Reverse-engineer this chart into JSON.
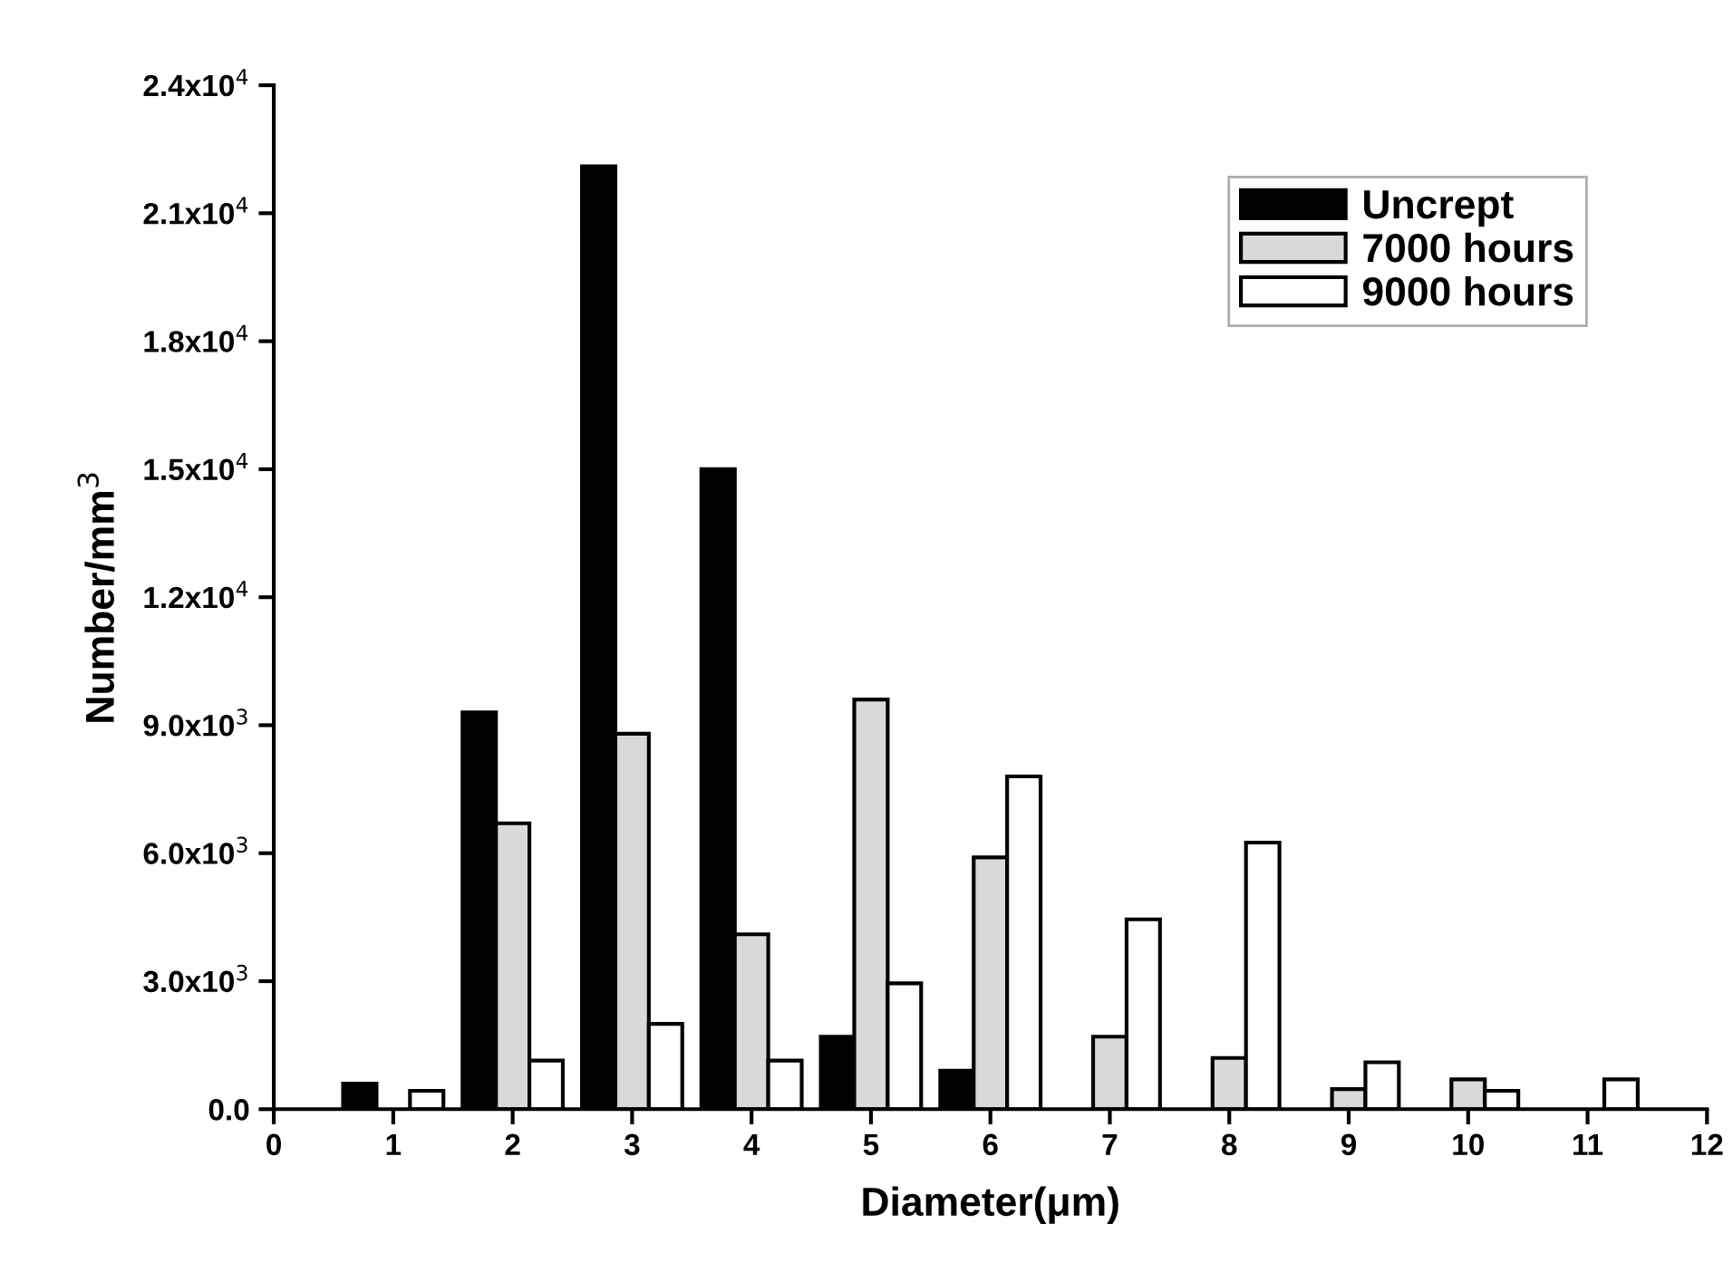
{
  "chart_data": {
    "type": "bar",
    "xlabel": "Diameter(μm)",
    "ylabel": "Number/mm$^{3}$",
    "x": [
      1,
      2,
      3,
      4,
      5,
      6,
      7,
      8,
      9,
      10,
      11
    ],
    "series": [
      {
        "name": "Uncrept",
        "color": "#000000",
        "values": [
          600,
          9300,
          22100,
          15000,
          1700,
          900,
          null,
          null,
          null,
          null,
          null
        ]
      },
      {
        "name": "7000 hours",
        "color": "#d9d9d9",
        "values": [
          null,
          6700,
          8800,
          4100,
          9600,
          5900,
          1700,
          1200,
          470,
          700,
          null
        ]
      },
      {
        "name": "9000 hours",
        "color": "#ffffff",
        "values": [
          430,
          1140,
          2000,
          1140,
          2950,
          7800,
          4450,
          6250,
          1100,
          430,
          700
        ]
      }
    ],
    "xlim": [
      0,
      12
    ],
    "xticks": [
      0,
      1,
      2,
      3,
      4,
      5,
      6,
      7,
      8,
      9,
      10,
      11,
      12
    ],
    "ylim": [
      0,
      24000
    ],
    "yticks": [
      {
        "value": 0,
        "label": "0.0"
      },
      {
        "value": 3000,
        "label": "3.0x10$^{3}$"
      },
      {
        "value": 6000,
        "label": "6.0x10$^{3}$"
      },
      {
        "value": 9000,
        "label": "9.0x10$^{3}$"
      },
      {
        "value": 12000,
        "label": "1.2x10$^{4}$"
      },
      {
        "value": 15000,
        "label": "1.5x10$^{4}$"
      },
      {
        "value": 18000,
        "label": "1.8x10$^{4}$"
      },
      {
        "value": 21000,
        "label": "2.1x10$^{4}$"
      },
      {
        "value": 24000,
        "label": "2.4x10$^{4}$"
      }
    ],
    "legend": "top right",
    "grid": false
  }
}
